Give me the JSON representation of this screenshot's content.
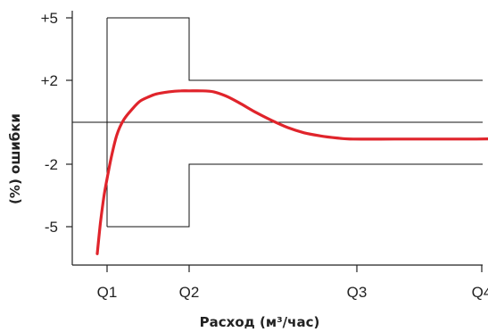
{
  "chart_data": {
    "type": "line",
    "title": "",
    "xlabel": "Расход (м³/час)",
    "ylabel": "(%) ошибки",
    "x_ticks": [
      "Q1",
      "Q2",
      "Q3",
      "Q4"
    ],
    "y_ticks": [
      "+5",
      "+2",
      "-2",
      "-5"
    ],
    "grid": false,
    "legend": "none",
    "colors": {
      "curve": "#e0242b",
      "envelope": "#111111",
      "axis": "#222222",
      "text": "#222222"
    },
    "error_limits": [
      {
        "from": "Q1",
        "to": "Q2",
        "upper": "+5",
        "lower": "-5"
      },
      {
        "from": "Q2",
        "to": "Q4",
        "upper": "+2",
        "lower": "-2"
      }
    ],
    "reference_line": 0,
    "series": [
      {
        "color": "#e0242b",
        "points": [
          {
            "x": -0.12,
            "y": -6.3
          },
          {
            "x": -0.08,
            "y": -4.8
          },
          {
            "x": -0.04,
            "y": -3.6
          },
          {
            "x": 0.0,
            "y": -2.7
          },
          {
            "x": 0.05,
            "y": -1.7
          },
          {
            "x": 0.12,
            "y": -0.6
          },
          {
            "x": 0.2,
            "y": 0.1
          },
          {
            "x": 0.3,
            "y": 0.6
          },
          {
            "x": 0.4,
            "y": 1.0
          },
          {
            "x": 0.5,
            "y": 1.2
          },
          {
            "x": 0.6,
            "y": 1.35
          },
          {
            "x": 0.75,
            "y": 1.45
          },
          {
            "x": 0.9,
            "y": 1.5
          },
          {
            "x": 1.0,
            "y": 1.5
          },
          {
            "x": 1.15,
            "y": 1.5
          },
          {
            "x": 1.3,
            "y": 1.45
          },
          {
            "x": 1.45,
            "y": 1.25
          },
          {
            "x": 1.6,
            "y": 0.95
          },
          {
            "x": 1.8,
            "y": 0.5
          },
          {
            "x": 2.0,
            "y": 0.1
          },
          {
            "x": 2.2,
            "y": -0.25
          },
          {
            "x": 2.4,
            "y": -0.5
          },
          {
            "x": 2.6,
            "y": -0.65
          },
          {
            "x": 2.8,
            "y": -0.75
          },
          {
            "x": 3.0,
            "y": -0.8
          },
          {
            "x": 3.5,
            "y": -0.8
          },
          {
            "x": 4.0,
            "y": -0.8
          },
          {
            "x": 4.5,
            "y": -0.8
          },
          {
            "x": 5.0,
            "y": -0.78
          },
          {
            "x": 5.5,
            "y": -0.78
          },
          {
            "x": 6.0,
            "y": -0.75
          },
          {
            "x": 6.2,
            "y": -0.65
          },
          {
            "x": 6.4,
            "y": -0.6
          },
          {
            "x": 6.6,
            "y": -0.6
          }
        ]
      }
    ]
  }
}
